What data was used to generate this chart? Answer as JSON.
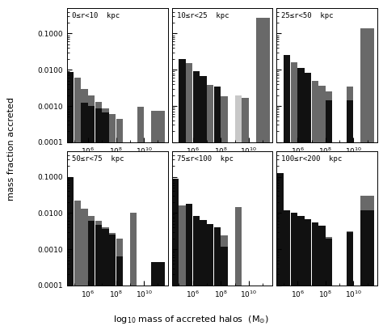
{
  "panels": [
    {
      "label": "0≤r<10  kpc"
    },
    {
      "label": "10≤r<25  kpc"
    },
    {
      "label": "25≤r<50  kpc"
    },
    {
      "label": "50≤r<75  kpc"
    },
    {
      "label": "75≤r<100  kpc"
    },
    {
      "label": "100≤r<200  kpc"
    }
  ],
  "xlabel": "log$_{10}$ mass of accreted halos  (M$_{\\odot}$)",
  "ylabel": "mass fraction accreted",
  "colors": {
    "dark_gray": "#696969",
    "med_gray": "#a8a8a8",
    "light_gray": "#c8c8c8",
    "black": "#111111",
    "bg": "#ffffff"
  },
  "bin_edges_log": [
    4.5,
    5.0,
    5.5,
    6.0,
    6.5,
    7.0,
    7.5,
    8.0,
    8.5,
    9.0,
    9.5,
    10.0,
    10.5,
    11.5
  ],
  "xlim": [
    4.5,
    11.7
  ],
  "ylim": [
    0.0001,
    0.5
  ],
  "panel_data": [
    {
      "comment": "0<=r<10 kpc — 4 series: light_gray, med_gray, dark_gray, black (drawn back to front)",
      "series": [
        {
          "color": "#c8c8c8",
          "values": [
            0.0,
            0.0,
            0.0,
            0.0,
            0.0,
            0.0,
            0.0,
            0.0,
            0.0,
            0.0,
            0.00085,
            0.0,
            0.00068
          ]
        },
        {
          "color": "#a8a8a8",
          "values": [
            0.007,
            0.0055,
            0.0027,
            0.0018,
            0.0011,
            0.00075,
            0.00052,
            0.00038,
            0.0,
            0.0,
            0.0009,
            0.0,
            0.0007
          ]
        },
        {
          "color": "#696969",
          "values": [
            0.0078,
            0.0062,
            0.003,
            0.002,
            0.0013,
            0.00085,
            0.0006,
            0.00045,
            0.0,
            0.0,
            0.00095,
            0.0,
            0.00075
          ]
        },
        {
          "color": "#111111",
          "values": [
            0.0085,
            0.0,
            0.0012,
            0.001,
            0.00085,
            0.00065,
            0.0,
            0.0,
            0.0,
            0.0,
            0.0,
            0.0,
            0.0
          ]
        }
      ]
    },
    {
      "comment": "10<=r<25 kpc",
      "series": [
        {
          "color": "#c8c8c8",
          "values": [
            0.0,
            0.0,
            0.0,
            0.0,
            0.0,
            0.0,
            0.0,
            0.0017,
            0.0,
            0.002,
            0.0,
            0.0,
            0.25
          ]
        },
        {
          "color": "#a8a8a8",
          "values": [
            0.0,
            0.016,
            0.014,
            0.007,
            0.005,
            0.0032,
            0.0022,
            0.0016,
            0.0,
            0.0,
            0.0015,
            0.0,
            0.0
          ]
        },
        {
          "color": "#696969",
          "values": [
            0.0,
            0.018,
            0.015,
            0.008,
            0.0058,
            0.0038,
            0.0027,
            0.0019,
            0.0,
            0.0,
            0.0017,
            0.0,
            0.27
          ]
        },
        {
          "color": "#111111",
          "values": [
            0.0,
            0.02,
            0.0,
            0.009,
            0.0068,
            0.0,
            0.0034,
            0.0,
            0.0,
            0.0,
            0.0,
            0.0,
            0.0
          ]
        }
      ]
    },
    {
      "comment": "25<=r<50 kpc",
      "series": [
        {
          "color": "#c8c8c8",
          "values": [
            0.0,
            0.0,
            0.0,
            0.0,
            0.0,
            0.0,
            0.0,
            0.0013,
            0.0,
            0.0,
            0.003,
            0.0,
            0.0
          ]
        },
        {
          "color": "#a8a8a8",
          "values": [
            0.0,
            0.02,
            0.014,
            0.0085,
            0.006,
            0.0042,
            0.003,
            0.0021,
            0.0,
            0.0,
            0.0,
            0.0,
            0.0
          ]
        },
        {
          "color": "#696969",
          "values": [
            0.0,
            0.023,
            0.016,
            0.0096,
            0.007,
            0.005,
            0.0036,
            0.0025,
            0.0,
            0.0,
            0.0035,
            0.0,
            0.14
          ]
        },
        {
          "color": "#111111",
          "values": [
            0.0,
            0.026,
            0.0,
            0.011,
            0.0082,
            0.0,
            0.0,
            0.0014,
            0.0,
            0.0,
            0.0014,
            0.0,
            0.0
          ]
        }
      ]
    },
    {
      "comment": "50<=r<75 kpc",
      "series": [
        {
          "color": "#c8c8c8",
          "values": [
            0.0,
            0.0,
            0.0,
            0.0,
            0.003,
            0.002,
            0.0014,
            0.001,
            0.0,
            0.01,
            0.0,
            0.0,
            0.0
          ]
        },
        {
          "color": "#a8a8a8",
          "values": [
            0.0,
            0.018,
            0.011,
            0.0072,
            0.005,
            0.0034,
            0.0022,
            0.0015,
            0.0,
            0.0,
            0.0,
            0.0,
            0.0
          ]
        },
        {
          "color": "#696969",
          "values": [
            0.09,
            0.022,
            0.013,
            0.0085,
            0.006,
            0.004,
            0.0028,
            0.002,
            0.0,
            0.01,
            0.0,
            0.0,
            0.0
          ]
        },
        {
          "color": "#111111",
          "values": [
            0.1,
            0.0,
            0.0,
            0.006,
            0.0048,
            0.0036,
            0.0025,
            0.00065,
            0.0,
            0.0,
            0.0,
            0.0,
            0.00045
          ]
        }
      ]
    },
    {
      "comment": "75<=r<100 kpc",
      "series": [
        {
          "color": "#c8c8c8",
          "values": [
            0.0,
            0.0,
            0.0,
            0.0,
            0.0,
            0.0,
            0.0015,
            0.0015,
            0.0,
            0.015,
            0.0,
            0.0,
            0.0
          ]
        },
        {
          "color": "#a8a8a8",
          "values": [
            0.0,
            0.014,
            0.0095,
            0.0065,
            0.0048,
            0.0035,
            0.0025,
            0.0018,
            0.0,
            0.0,
            0.0,
            0.0,
            0.0
          ]
        },
        {
          "color": "#696969",
          "values": [
            0.09,
            0.016,
            0.011,
            0.008,
            0.0058,
            0.0043,
            0.0033,
            0.0024,
            0.0,
            0.015,
            0.0,
            0.0,
            0.0
          ]
        },
        {
          "color": "#111111",
          "values": [
            0.09,
            0.0,
            0.018,
            0.0085,
            0.0065,
            0.005,
            0.004,
            0.0012,
            0.0,
            0.0,
            0.0,
            0.0,
            0.0
          ]
        }
      ]
    },
    {
      "comment": "100<=r<200 kpc",
      "series": [
        {
          "color": "#c8c8c8",
          "values": [
            0.0,
            0.0,
            0.006,
            0.0038,
            0.0028,
            0.002,
            0.0014,
            0.001,
            0.0,
            0.0,
            0.0028,
            0.0,
            0.028
          ]
        },
        {
          "color": "#a8a8a8",
          "values": [
            0.0,
            0.0085,
            0.0075,
            0.0055,
            0.0042,
            0.0032,
            0.0024,
            0.0017,
            0.0,
            0.0,
            0.0,
            0.0,
            0.0
          ]
        },
        {
          "color": "#696969",
          "values": [
            0.0,
            0.01,
            0.009,
            0.0068,
            0.0052,
            0.004,
            0.003,
            0.0022,
            0.0,
            0.0,
            0.0032,
            0.0,
            0.03
          ]
        },
        {
          "color": "#111111",
          "values": [
            0.13,
            0.012,
            0.01,
            0.0085,
            0.0068,
            0.0055,
            0.0044,
            0.002,
            0.0,
            0.0,
            0.003,
            0.0,
            0.012
          ]
        }
      ]
    }
  ]
}
